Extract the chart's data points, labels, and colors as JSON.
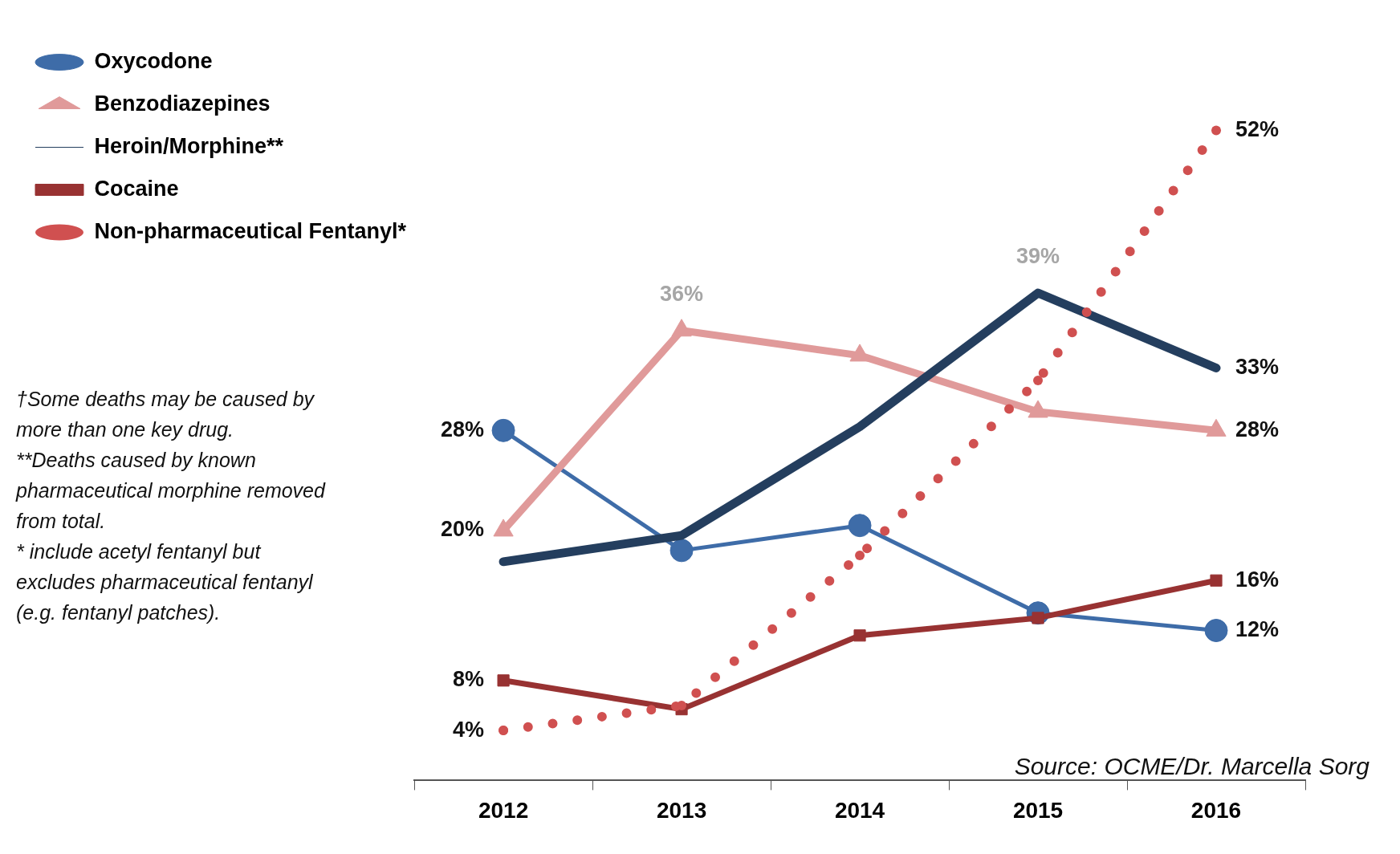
{
  "chart_data": {
    "type": "line",
    "categories": [
      "2012",
      "2013",
      "2014",
      "2015",
      "2016"
    ],
    "tick_labels": "x",
    "grid": false,
    "legend": "top left",
    "annotations": [
      "†Some deaths may be caused by more than one key drug.\n**Deaths caused by known pharmaceutical morphine removed from total.\n* include acetyl fentanyl but excludes pharmaceutical fentanyl (e.g. fentanyl patches).",
      "Source: OCME/Dr. Marcella Sorg"
    ],
    "series": [
      {
        "name": "Oxycodone",
        "color": "#3e6ca8",
        "marker": "circle",
        "line_style": "solid",
        "values": [
          28,
          18.4,
          20.4,
          13.4,
          12
        ],
        "value_labels": [
          "28%",
          null,
          null,
          null,
          "12%"
        ]
      },
      {
        "name": "Benzodiazepines",
        "color": "#e09a9a",
        "marker": "triangle",
        "line_style": "solid",
        "values": [
          20,
          36,
          34,
          29.5,
          28
        ],
        "value_labels": [
          "20%",
          "36%",
          null,
          null,
          "28%"
        ]
      },
      {
        "name": "Heroin/Morphine**",
        "color": "#243e5e",
        "marker": "none",
        "line_style": "solid",
        "values": [
          17.5,
          19.6,
          28.3,
          39,
          33
        ],
        "value_labels": [
          null,
          null,
          null,
          "39%",
          "33%"
        ]
      },
      {
        "name": "Cocaine",
        "color": "#983232",
        "marker": "square",
        "line_style": "solid",
        "values": [
          8,
          5.7,
          11.6,
          13,
          16
        ],
        "value_labels": [
          "8%",
          null,
          null,
          null,
          "16%"
        ]
      },
      {
        "name": "Non-pharmaceutical Fentanyl*",
        "color": "#d05050",
        "marker": "circle",
        "line_style": "dotted",
        "values": [
          4,
          6,
          18,
          32,
          52
        ],
        "value_labels": [
          "4%",
          null,
          null,
          null,
          "52%"
        ]
      }
    ]
  }
}
